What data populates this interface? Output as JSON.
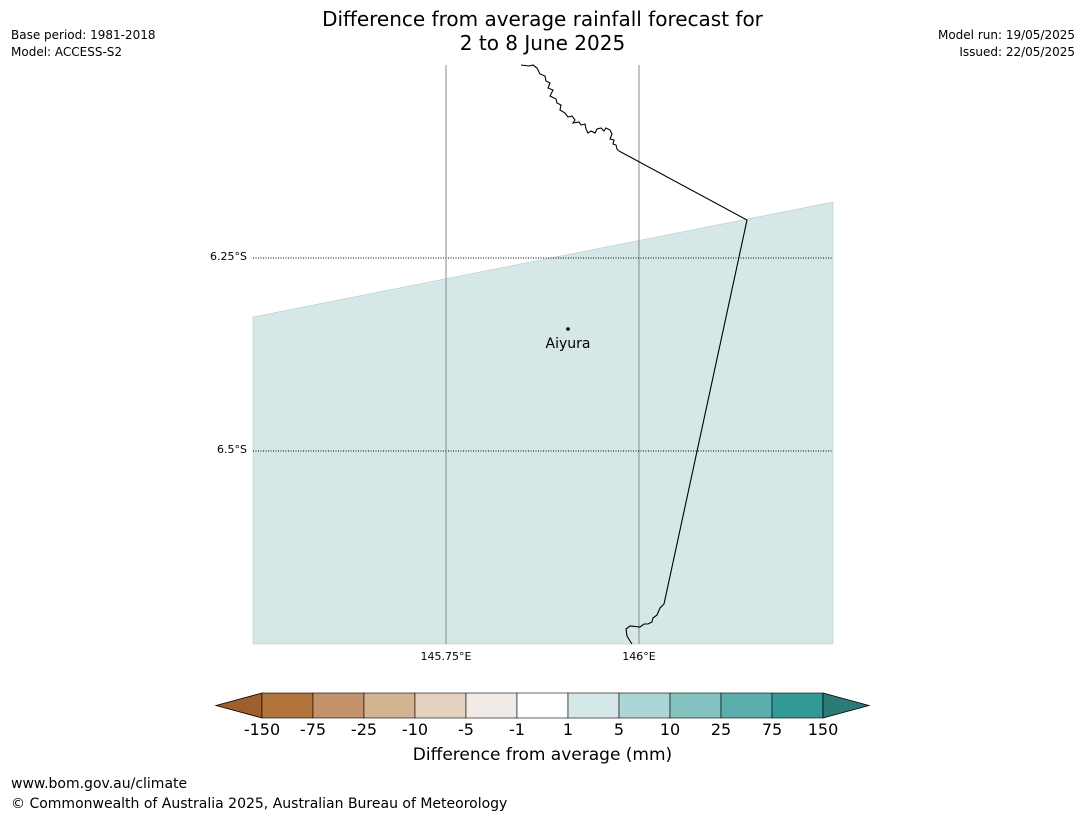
{
  "header": {
    "title_line1": "Difference from average rainfall forecast for",
    "title_line2": "2 to 8 June 2025",
    "base_period": "Base period: 1981-2018",
    "model": "Model: ACCESS-S2",
    "model_run": "Model run: 19/05/2025",
    "issued": "Issued: 22/05/2025"
  },
  "map": {
    "lat_labels": [
      "6.25°S",
      "6.5°S"
    ],
    "lon_labels": [
      "145.75°E",
      "146°E"
    ],
    "place": {
      "name": "Aiyura"
    },
    "fill_color": "#d5e8e7",
    "fill_category": "1 to 5"
  },
  "colorbar": {
    "label": "Difference from average (mm)",
    "ticks": [
      "-150",
      "-75",
      "-25",
      "-10",
      "-5",
      "-1",
      "1",
      "5",
      "10",
      "25",
      "75",
      "150"
    ],
    "colors": [
      "#9e5f2b",
      "#b0733a",
      "#c3916a",
      "#d4b393",
      "#e4d1bf",
      "#f0ebe7",
      "#ffffff",
      "#d5e8e7",
      "#acd6d5",
      "#84c2bf",
      "#5aaeab",
      "#319996",
      "#2a7b78"
    ]
  },
  "footer": {
    "url": "www.bom.gov.au/climate",
    "copyright": "© Commonwealth of Australia 2025, Australian Bureau of Meteorology"
  }
}
